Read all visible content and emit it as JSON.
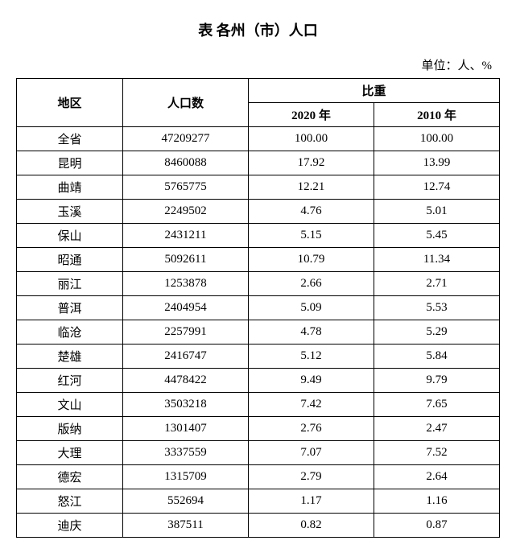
{
  "title": "表   各州（市）人口",
  "unit": "单位：人、%",
  "headers": {
    "region": "地区",
    "population": "人口数",
    "ratio": "比重",
    "year2020": "2020 年",
    "year2010": "2010 年"
  },
  "rows": [
    {
      "region": "全省",
      "population": "47209277",
      "ratio2020": "100.00",
      "ratio2010": "100.00"
    },
    {
      "region": "昆明",
      "population": "8460088",
      "ratio2020": "17.92",
      "ratio2010": "13.99"
    },
    {
      "region": "曲靖",
      "population": "5765775",
      "ratio2020": "12.21",
      "ratio2010": "12.74"
    },
    {
      "region": "玉溪",
      "population": "2249502",
      "ratio2020": "4.76",
      "ratio2010": "5.01"
    },
    {
      "region": "保山",
      "population": "2431211",
      "ratio2020": "5.15",
      "ratio2010": "5.45"
    },
    {
      "region": "昭通",
      "population": "5092611",
      "ratio2020": "10.79",
      "ratio2010": "11.34"
    },
    {
      "region": "丽江",
      "population": "1253878",
      "ratio2020": "2.66",
      "ratio2010": "2.71"
    },
    {
      "region": "普洱",
      "population": "2404954",
      "ratio2020": "5.09",
      "ratio2010": "5.53"
    },
    {
      "region": "临沧",
      "population": "2257991",
      "ratio2020": "4.78",
      "ratio2010": "5.29"
    },
    {
      "region": "楚雄",
      "population": "2416747",
      "ratio2020": "5.12",
      "ratio2010": "5.84"
    },
    {
      "region": "红河",
      "population": "4478422",
      "ratio2020": "9.49",
      "ratio2010": "9.79"
    },
    {
      "region": "文山",
      "population": "3503218",
      "ratio2020": "7.42",
      "ratio2010": "7.65"
    },
    {
      "region": "版纳",
      "population": "1301407",
      "ratio2020": "2.76",
      "ratio2010": "2.47"
    },
    {
      "region": "大理",
      "population": "3337559",
      "ratio2020": "7.07",
      "ratio2010": "7.52"
    },
    {
      "region": "德宏",
      "population": "1315709",
      "ratio2020": "2.79",
      "ratio2010": "2.64"
    },
    {
      "region": "怒江",
      "population": "552694",
      "ratio2020": "1.17",
      "ratio2010": "1.16"
    },
    {
      "region": "迪庆",
      "population": "387511",
      "ratio2020": "0.82",
      "ratio2010": "0.87"
    }
  ]
}
